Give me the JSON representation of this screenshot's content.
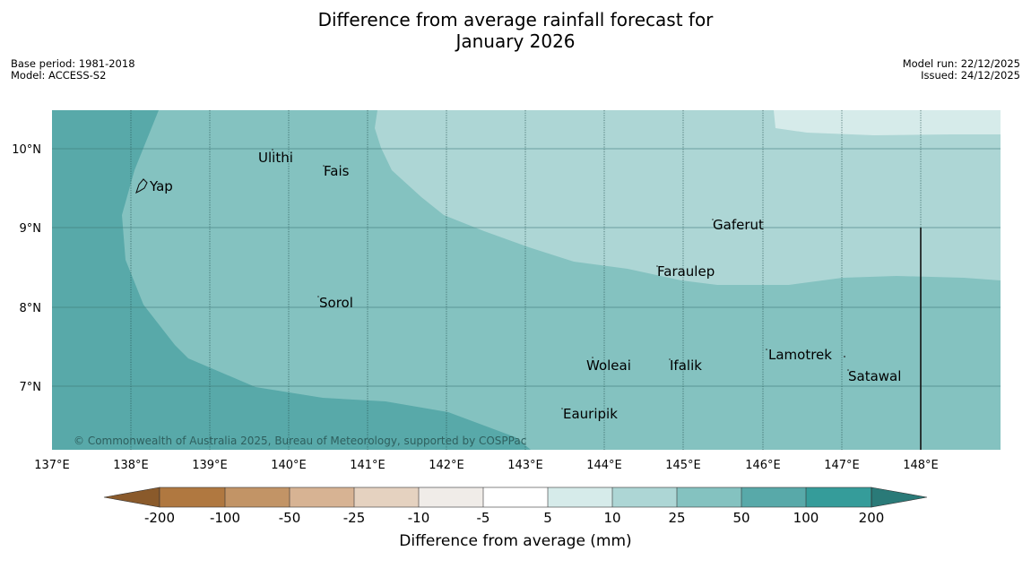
{
  "header": {
    "title_line1": "Difference from average rainfall forecast for",
    "title_line2": "January 2026",
    "base_period": "Base period: 1981-2018",
    "model": "Model: ACCESS-S2",
    "model_run": "Model run: 22/12/2025",
    "issued": "Issued: 24/12/2025"
  },
  "map": {
    "lon_labels": [
      "137°E",
      "138°E",
      "139°E",
      "140°E",
      "141°E",
      "142°E",
      "143°E",
      "144°E",
      "145°E",
      "146°E",
      "147°E",
      "148°E"
    ],
    "lat_labels": [
      "10°N",
      "9°N",
      "8°N",
      "7°N"
    ],
    "places": [
      {
        "name": "Yap"
      },
      {
        "name": "Ulithi"
      },
      {
        "name": "Fais"
      },
      {
        "name": "Gaferut"
      },
      {
        "name": "Faraulep"
      },
      {
        "name": "Sorol"
      },
      {
        "name": "Woleai"
      },
      {
        "name": "Ifalik"
      },
      {
        "name": "Lamotrek"
      },
      {
        "name": "Satawal"
      },
      {
        "name": "Eauripik"
      }
    ],
    "copyright": "© Commonwealth of Australia 2025, Bureau of Meteorology, supported by COSPPac"
  },
  "legend": {
    "ticks": [
      "-200",
      "-100",
      "-50",
      "-25",
      "-10",
      "-5",
      "5",
      "10",
      "25",
      "50",
      "100",
      "200"
    ],
    "colors": [
      "#8a5a2b",
      "#b07840",
      "#c29466",
      "#d7b393",
      "#e5d2c0",
      "#f0ece8",
      "#ffffff",
      "#d6ebea",
      "#add6d5",
      "#84c2c0",
      "#58a9a9",
      "#359c9a",
      "#2a7a78"
    ],
    "label": "Difference from average (mm)"
  },
  "colors": {
    "band_10_25": "#add6d5",
    "band_25_50": "#84c2c0",
    "band_50_100": "#58a9a9",
    "band_5_10": "#d6ebea"
  }
}
